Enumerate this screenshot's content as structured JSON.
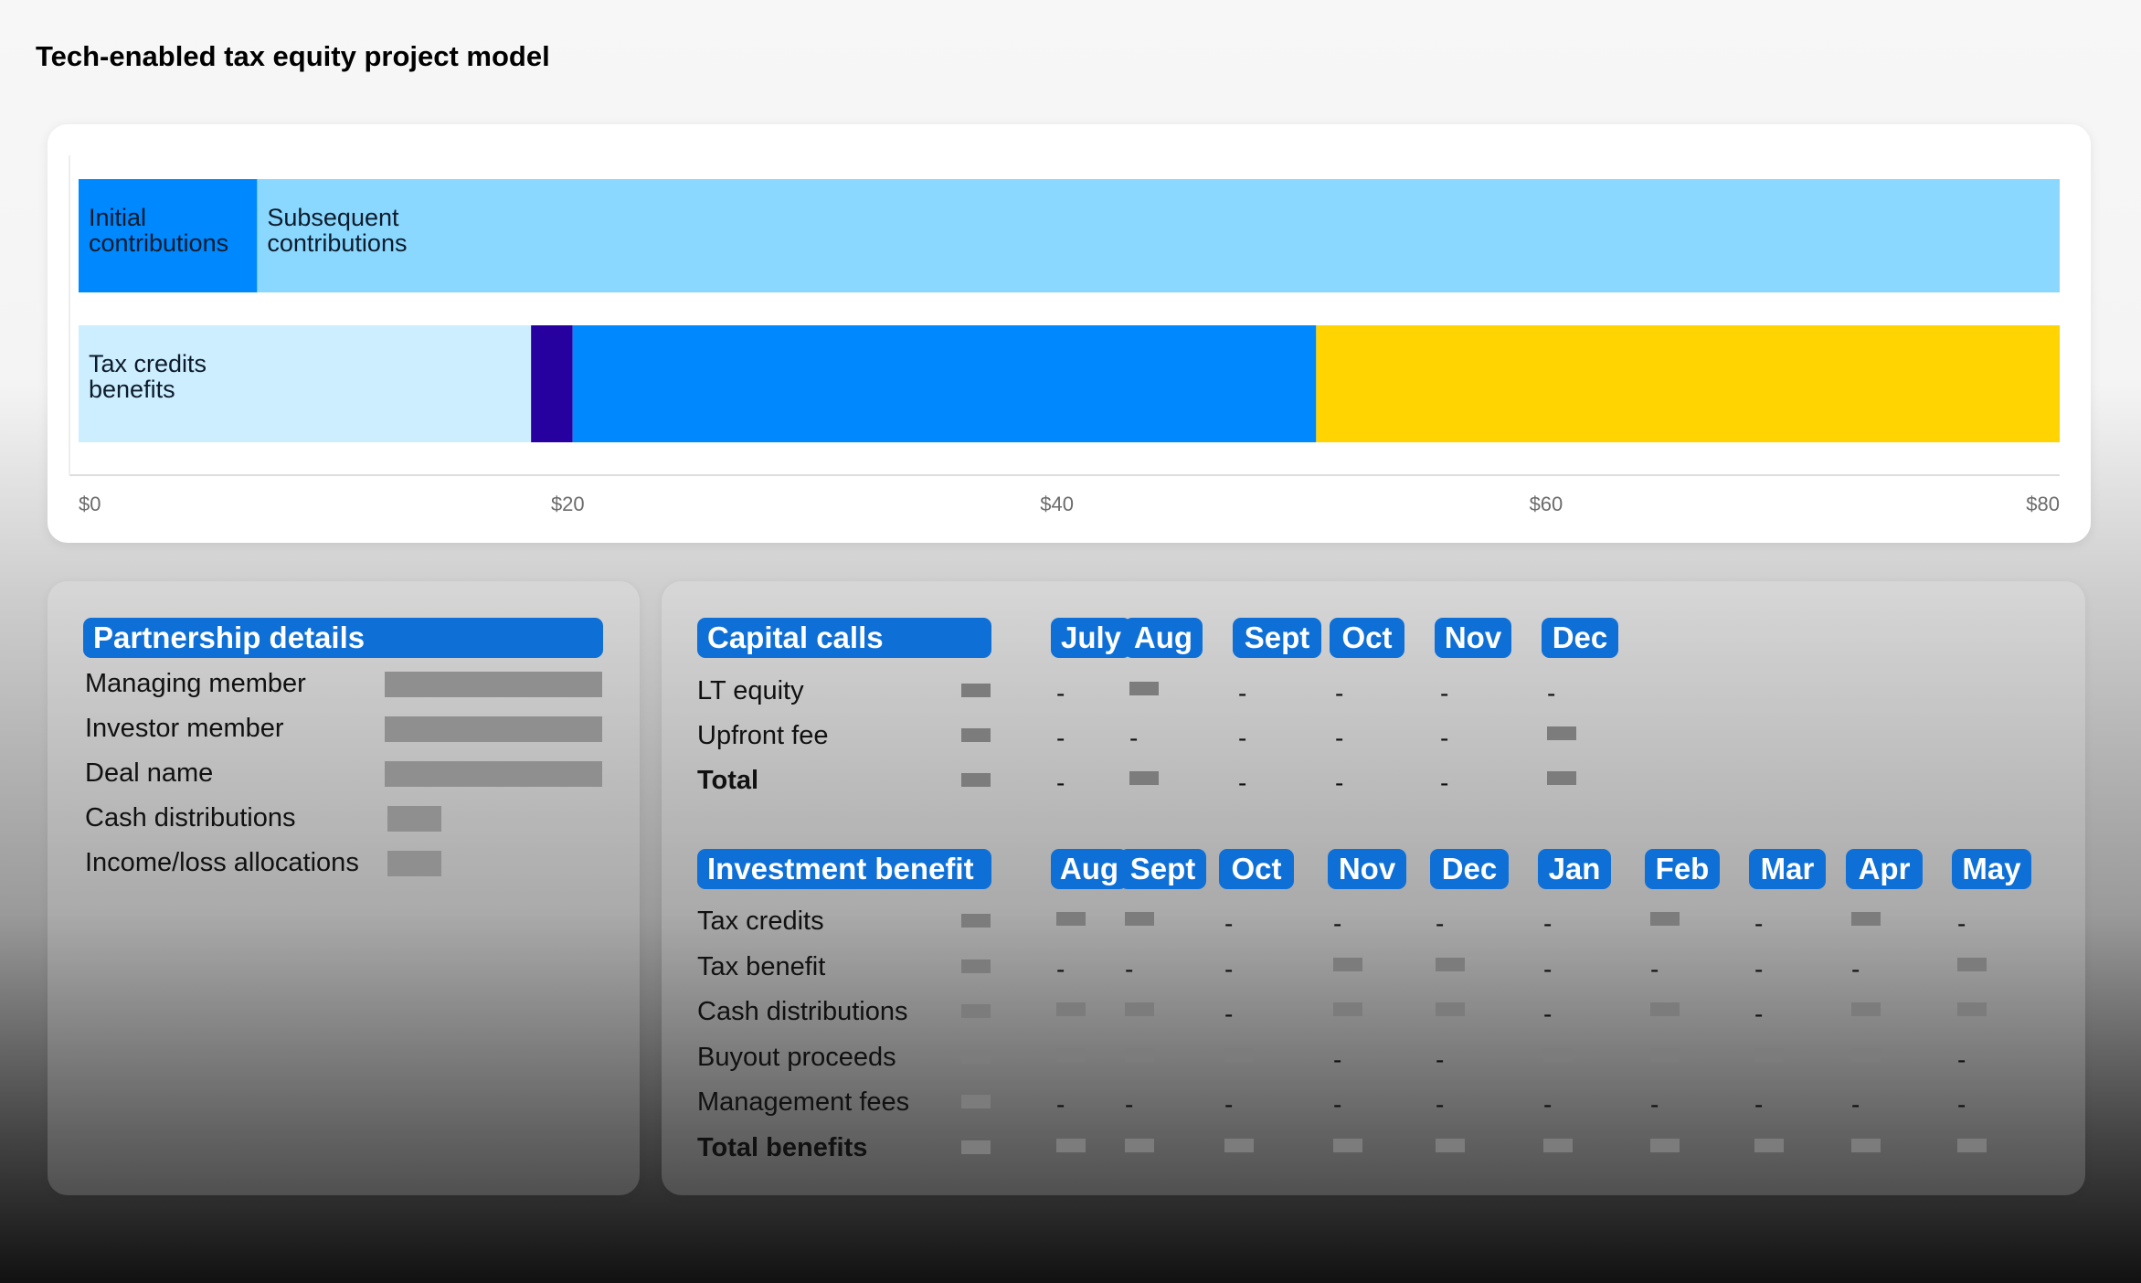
{
  "page_title": "Tech-enabled tax equity project model",
  "colors": {
    "initial": "#0088ff",
    "subsequent": "#8ad8ff",
    "tax_credits_base": "#cdeeff",
    "navy": "#2700a0",
    "blue": "#0088ff",
    "yellow": "#ffd400",
    "pill": "#0e6fd6"
  },
  "chart_data": {
    "type": "bar",
    "orientation": "horizontal-stacked",
    "xlim": [
      0,
      81
    ],
    "ticks": [
      "$0",
      "$20",
      "$40",
      "$60",
      "$80"
    ],
    "tick_values": [
      0,
      20,
      40,
      60,
      80
    ],
    "rows": [
      {
        "segments": [
          {
            "label": "Initial contributions",
            "start": 0,
            "end": 7.3,
            "color": "#0088ff"
          },
          {
            "label": "Subsequent contributions",
            "start": 7.3,
            "end": 81,
            "color": "#8ad8ff"
          }
        ]
      },
      {
        "segments": [
          {
            "label": "Tax credits benefits",
            "start": 0,
            "end": 18.5,
            "color": "#cdeeff"
          },
          {
            "label": "",
            "start": 18.5,
            "end": 20.2,
            "color": "#2700a0"
          },
          {
            "label": "",
            "start": 20.2,
            "end": 50.6,
            "color": "#0088ff"
          },
          {
            "label": "",
            "start": 50.6,
            "end": 81,
            "color": "#ffd400"
          }
        ]
      }
    ]
  },
  "partnership": {
    "title": "Partnership details",
    "rows": [
      {
        "label": "Managing member",
        "size": "long"
      },
      {
        "label": "Investor member",
        "size": "long"
      },
      {
        "label": "Deal name",
        "size": "long"
      },
      {
        "label": "Cash distributions",
        "size": "short"
      },
      {
        "label": "Income/loss allocations",
        "size": "short"
      }
    ]
  },
  "capital_calls": {
    "title": "Capital calls",
    "months": [
      "July",
      "Aug",
      "Sept",
      "Oct",
      "Nov",
      "Dec"
    ],
    "rows": [
      {
        "label": "LT equity",
        "bold": false,
        "first": "block",
        "cells": [
          "-",
          "block",
          "-",
          "-",
          "-",
          "-"
        ]
      },
      {
        "label": "Upfront fee",
        "bold": false,
        "first": "block",
        "cells": [
          "-",
          "-",
          "-",
          "-",
          "-",
          "block"
        ]
      },
      {
        "label": "Total",
        "bold": true,
        "first": "block",
        "cells": [
          "-",
          "block",
          "-",
          "-",
          "-",
          "block"
        ]
      }
    ]
  },
  "investment_benefit": {
    "title": "Investment benefit",
    "months": [
      "Aug",
      "Sept",
      "Oct",
      "Nov",
      "Dec",
      "Jan",
      "Feb",
      "Mar",
      "Apr",
      "May"
    ],
    "rows": [
      {
        "label": "Tax credits",
        "bold": false,
        "first": "block",
        "cells": [
          "block",
          "block",
          "-",
          "-",
          "-",
          "-",
          "block",
          "-",
          "block",
          "-"
        ]
      },
      {
        "label": "Tax benefit",
        "bold": false,
        "first": "block",
        "cells": [
          "-",
          "-",
          "-",
          "block",
          "block",
          "-",
          "-",
          "-",
          "-",
          "block"
        ]
      },
      {
        "label": "Cash distributions",
        "bold": false,
        "first": "block",
        "cells": [
          "block",
          "block",
          "-",
          "block",
          "block",
          "-",
          "block",
          "-",
          "block",
          "block"
        ]
      },
      {
        "label": "Buyout proceeds",
        "bold": false,
        "first": "block",
        "cells": [
          "block",
          "block",
          "block",
          "-",
          "-",
          "block",
          "block",
          "block",
          "block",
          "-"
        ]
      },
      {
        "label": "Management fees",
        "bold": false,
        "first": "block",
        "cells": [
          "-",
          "-",
          "-",
          "-",
          "-",
          "-",
          "-",
          "-",
          "-",
          "-"
        ]
      },
      {
        "label": "Total benefits",
        "bold": true,
        "first": "block",
        "cells": [
          "block",
          "block",
          "block",
          "block",
          "block",
          "block",
          "block",
          "block",
          "block",
          "block"
        ]
      }
    ]
  }
}
